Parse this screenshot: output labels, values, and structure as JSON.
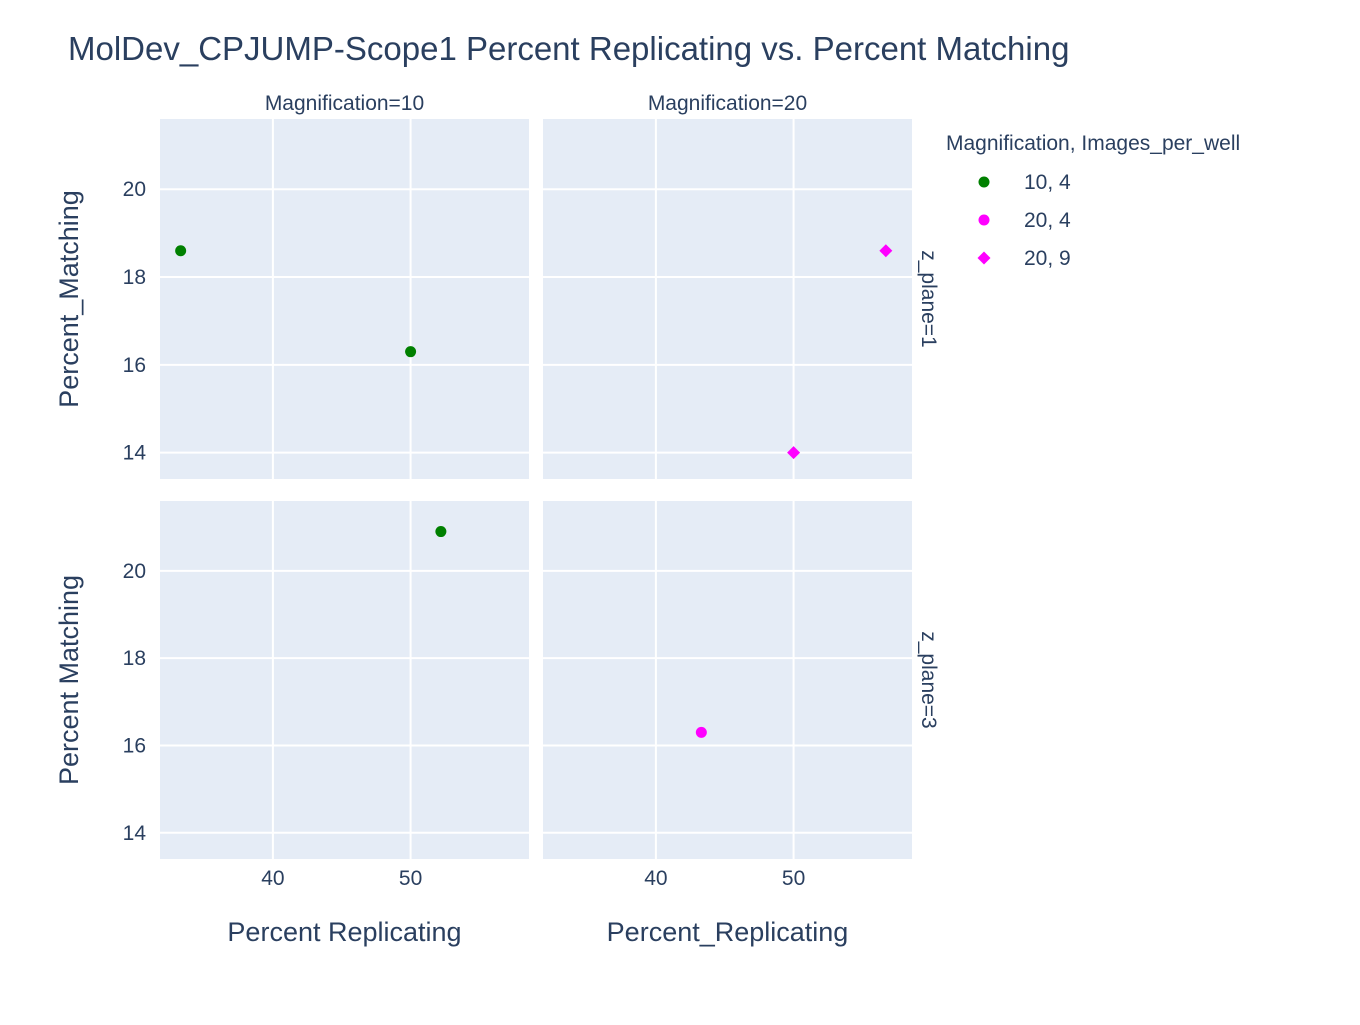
{
  "chart_data": {
    "type": "scatter",
    "title": "MolDev_CPJUMP-Scope1 Percent Replicating vs. Percent Matching",
    "facet_columns": [
      "Magnification=10",
      "Magnification=20"
    ],
    "facet_rows": [
      "z_plane=1",
      "z_plane=3"
    ],
    "xlabels": [
      "Percent Replicating",
      "Percent_Replicating"
    ],
    "ylabels": [
      "Percent_Matching",
      "Percent Matching"
    ],
    "x_ticks": [
      40,
      50
    ],
    "y_ticks": [
      14,
      16,
      18,
      20
    ],
    "xlim": [
      31.8,
      58.6
    ],
    "ylim": [
      13.4,
      21.6
    ],
    "grid": true,
    "legend": {
      "title": "Magnification, Images_per_well",
      "placement": "right",
      "entries": [
        {
          "label": "10, 4",
          "color": "#008000",
          "symbol": "circle"
        },
        {
          "label": "20, 4",
          "color": "#ff00ff",
          "symbol": "circle"
        },
        {
          "label": "20, 9",
          "color": "#ff00ff",
          "symbol": "diamond"
        }
      ]
    },
    "points": [
      {
        "facet_col": 0,
        "facet_row": 0,
        "x": 33.3,
        "y": 18.6,
        "legend": 0
      },
      {
        "facet_col": 0,
        "facet_row": 0,
        "x": 50.0,
        "y": 16.3,
        "legend": 0
      },
      {
        "facet_col": 1,
        "facet_row": 0,
        "x": 56.7,
        "y": 18.6,
        "legend": 2
      },
      {
        "facet_col": 1,
        "facet_row": 0,
        "x": 50.0,
        "y": 14.0,
        "legend": 2
      },
      {
        "facet_col": 0,
        "facet_row": 1,
        "x": 52.2,
        "y": 20.9,
        "legend": 0
      },
      {
        "facet_col": 1,
        "facet_row": 1,
        "x": 43.3,
        "y": 16.3,
        "legend": 1
      }
    ],
    "colors": {
      "plot_bg": "#e5ecf6",
      "grid": "#ffffff",
      "text": "#2a3f5f"
    }
  }
}
